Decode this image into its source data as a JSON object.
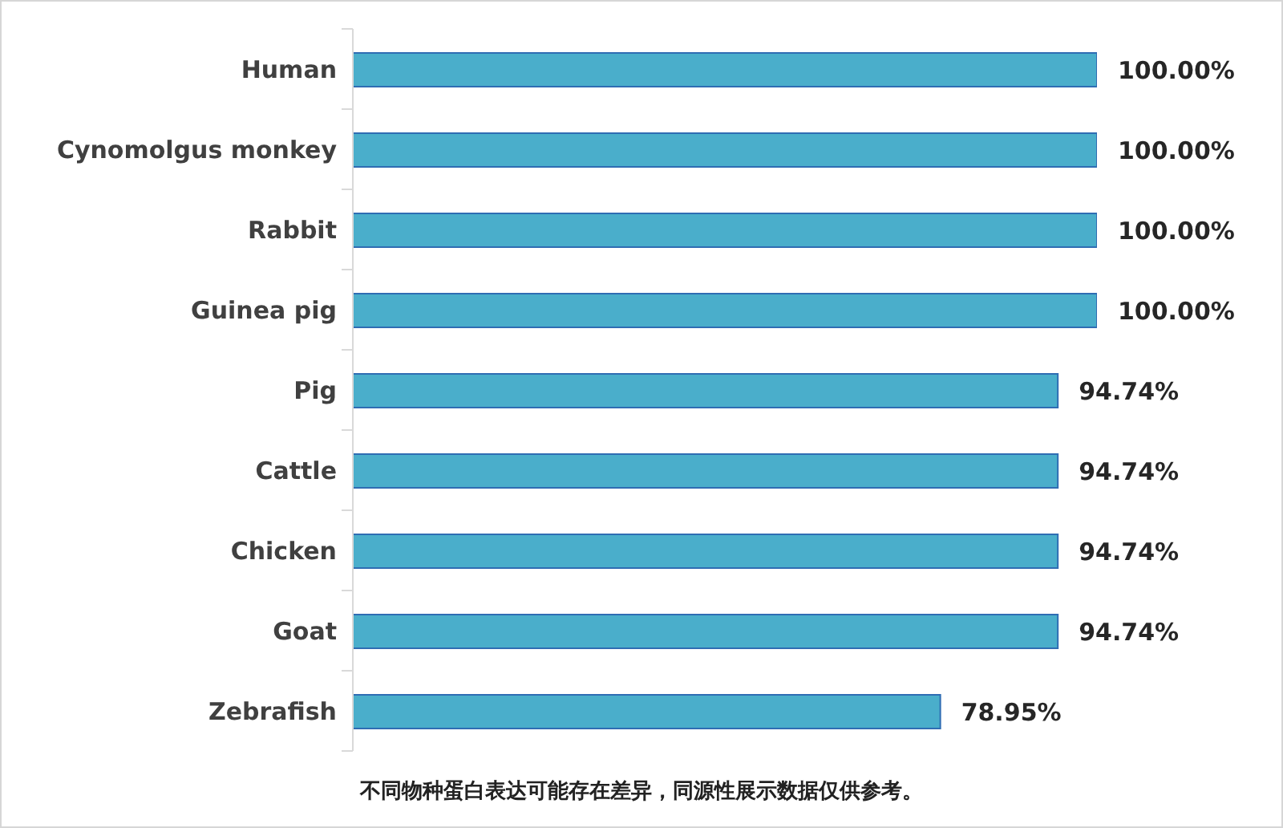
{
  "chart_data": {
    "type": "bar",
    "orientation": "horizontal",
    "categories": [
      "Human",
      "Cynomolgus monkey",
      "Rabbit",
      "Guinea pig",
      "Pig",
      "Cattle",
      "Chicken",
      "Goat",
      "Zebrafish"
    ],
    "values": [
      100,
      100,
      100,
      100,
      94.74,
      94.74,
      94.74,
      94.74,
      78.95
    ],
    "value_labels": [
      "100.00%",
      "100.00%",
      "100.00%",
      "100.00%",
      "94.74%",
      "94.74%",
      "94.74%",
      "94.74%",
      "78.95%"
    ],
    "color": "#4aaecb",
    "annotations": [
      "不同物种蛋白表达可能存在差异，同源性展示数据仅供参考。"
    ]
  }
}
